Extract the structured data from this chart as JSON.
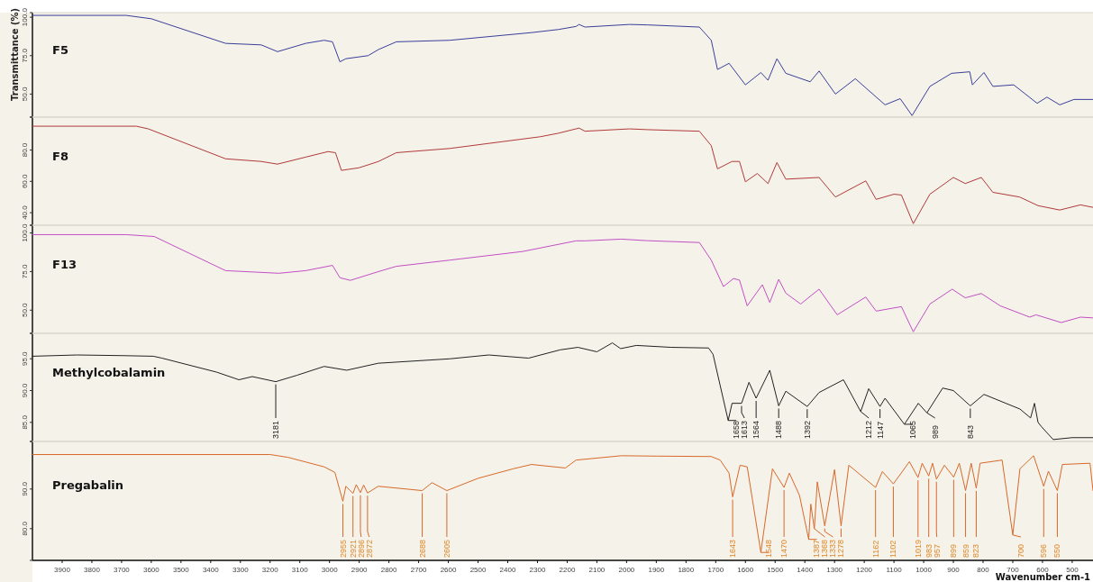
{
  "chart_data": [
    {
      "type": "line",
      "ylabel": "Transmittance (%)",
      "xlim": [
        4000,
        430
      ],
      "ylim": [
        35,
        103
      ],
      "tick_labels": "y",
      "yticks": [
        {
          "value": 100,
          "label": "100.0"
        },
        {
          "value": 75,
          "label": "75.0"
        },
        {
          "value": 50,
          "label": "50.0"
        }
      ],
      "series": [
        {
          "name": "F5",
          "color": "#3b3f9a",
          "x": [
            4000,
            3685,
            3600,
            3350,
            3230,
            3175,
            3080,
            3018,
            2990,
            2965,
            2945,
            2870,
            2835,
            2775,
            2595,
            2320,
            2230,
            2170,
            2160,
            2140,
            1990,
            1930,
            1755,
            1715,
            1694,
            1655,
            1600,
            1548,
            1524,
            1494,
            1464,
            1382,
            1352,
            1297,
            1230,
            1130,
            1079,
            1039,
            979,
            906,
            845,
            836,
            797,
            767,
            697,
            618,
            585,
            542,
            494,
            430
          ],
          "values": [
            101.2,
            101.2,
            99,
            83,
            82,
            77.6,
            83,
            85,
            84,
            71,
            73,
            75,
            79,
            84,
            85,
            90,
            92,
            94,
            95.3,
            93.6,
            95.3,
            95,
            93.6,
            85,
            66,
            70,
            56,
            64,
            59,
            73,
            63.5,
            58,
            65,
            50,
            60,
            43,
            47,
            36,
            55,
            63.5,
            64.5,
            56,
            64,
            55,
            56,
            44,
            48,
            43,
            46.5,
            46.5
          ]
        }
      ]
    },
    {
      "type": "line",
      "xlim": [
        4000,
        430
      ],
      "ylim": [
        32,
        101
      ],
      "tick_labels": "y",
      "yticks": [
        {
          "value": 80,
          "label": "80.0"
        },
        {
          "value": 60,
          "label": "60.0"
        },
        {
          "value": 40,
          "label": "40.0"
        }
      ],
      "series": [
        {
          "name": "F8",
          "color": "#b23a3a",
          "x": [
            4000,
            3650,
            3610,
            3350,
            3230,
            3175,
            3080,
            3005,
            2980,
            2960,
            2900,
            2835,
            2775,
            2595,
            2290,
            2230,
            2160,
            2140,
            1990,
            1930,
            1755,
            1715,
            1694,
            1645,
            1620,
            1600,
            1560,
            1524,
            1494,
            1464,
            1352,
            1297,
            1195,
            1160,
            1100,
            1075,
            1035,
            979,
            900,
            860,
            806,
            767,
            677,
            615,
            542,
            472,
            430
          ],
          "values": [
            95.2,
            95.2,
            93.5,
            74.4,
            72.7,
            71,
            75.5,
            79,
            78.3,
            67,
            68.7,
            72.7,
            78.3,
            81,
            88.5,
            90.7,
            94,
            92,
            93.5,
            93,
            92,
            82.8,
            68,
            72.7,
            72.7,
            59.7,
            65,
            58.6,
            72,
            61.4,
            62.5,
            50,
            60.3,
            48.5,
            51.8,
            51.3,
            33,
            51.8,
            62.5,
            58.6,
            62.5,
            53,
            50,
            44.5,
            41.7,
            45,
            43.4
          ]
        }
      ]
    },
    {
      "type": "line",
      "xlim": [
        4000,
        430
      ],
      "ylim": [
        35,
        105
      ],
      "tick_labels": "y",
      "yticks": [
        {
          "value": 100,
          "label": "100.0"
        },
        {
          "value": 75,
          "label": "75.0"
        },
        {
          "value": 50,
          "label": "50.0"
        }
      ],
      "series": [
        {
          "name": "F13",
          "color": "#c44fc4",
          "x": [
            4000,
            3685,
            3590,
            3350,
            3170,
            3080,
            2990,
            2965,
            2930,
            2835,
            2775,
            2595,
            2350,
            2170,
            2140,
            2018,
            1930,
            1755,
            1715,
            1674,
            1640,
            1620,
            1594,
            1543,
            1518,
            1488,
            1464,
            1414,
            1352,
            1291,
            1195,
            1160,
            1075,
            1035,
            979,
            904,
            860,
            806,
            742,
            643,
            622,
            537,
            472,
            430
          ],
          "values": [
            98.9,
            98.9,
            97.7,
            75.6,
            73.9,
            75.6,
            79,
            71,
            69.3,
            75,
            78.4,
            82.4,
            88,
            94.9,
            94.9,
            96,
            95,
            93.8,
            82.4,
            65.3,
            70.5,
            69.5,
            52.8,
            66.5,
            55,
            70,
            61,
            54,
            63.6,
            47,
            58.5,
            49.4,
            52.3,
            36,
            54,
            63.6,
            58,
            60.8,
            52.8,
            45.5,
            47,
            42,
            45.5,
            45
          ]
        }
      ]
    },
    {
      "type": "line",
      "xlim": [
        4000,
        430
      ],
      "ylim": [
        82,
        99
      ],
      "tick_labels": "y",
      "yticks": [
        {
          "value": 95,
          "label": "95.0"
        },
        {
          "value": 90,
          "label": "90.0"
        },
        {
          "value": 85,
          "label": "85.0"
        }
      ],
      "series": [
        {
          "name": "Methylcobalamin",
          "color": "#222222",
          "x": [
            4000,
            3850,
            3700,
            3593,
            3564,
            3380,
            3305,
            3260,
            3181,
            3110,
            3018,
            2942,
            2836,
            2594,
            2464,
            2330,
            2224,
            2164,
            2100,
            2048,
            2020,
            1967,
            1850,
            1724,
            1709,
            1658,
            1645,
            1613,
            1588,
            1564,
            1518,
            1488,
            1464,
            1392,
            1352,
            1270,
            1212,
            1185,
            1147,
            1130,
            1065,
            1018,
            989,
            936,
            900,
            843,
            797,
            676,
            640,
            627,
            615,
            603,
            564,
            500,
            430
          ],
          "values": [
            95.4,
            95.6,
            95.5,
            95.4,
            95.1,
            92.9,
            91.7,
            92.2,
            91.4,
            92.4,
            93.8,
            93.2,
            94.3,
            95,
            95.6,
            95.1,
            96.4,
            96.8,
            96.1,
            97.5,
            96.6,
            97.1,
            96.8,
            96.7,
            95.7,
            85.3,
            88,
            88,
            91.3,
            88.8,
            93.2,
            87.6,
            89.9,
            87.5,
            89.7,
            91.7,
            86.7,
            90.3,
            87.5,
            88.8,
            84.7,
            88,
            86.5,
            90.4,
            90,
            87.6,
            89.4,
            87.1,
            85.7,
            88,
            85,
            84.3,
            82.3,
            82.6,
            82.6
          ]
        }
      ],
      "annotations": [
        {
          "text": "3181",
          "x": 3181,
          "y": 91.4
        },
        {
          "text": "1658",
          "x": 1658,
          "y": 85.3
        },
        {
          "text": "1613",
          "x": 1613,
          "y": 88
        },
        {
          "text": "1564",
          "x": 1564,
          "y": 88.8
        },
        {
          "text": "1488",
          "x": 1488,
          "y": 87.6
        },
        {
          "text": "1392",
          "x": 1392,
          "y": 87.5
        },
        {
          "text": "1212",
          "x": 1212,
          "y": 86.7
        },
        {
          "text": "1147",
          "x": 1147,
          "y": 87.5
        },
        {
          "text": "1065",
          "x": 1065,
          "y": 84.7
        },
        {
          "text": "989",
          "x": 989,
          "y": 86.5
        },
        {
          "text": "843",
          "x": 843,
          "y": 87.6
        }
      ]
    },
    {
      "type": "line",
      "xlabel": "Wavenumber cm-1",
      "xlim": [
        4000,
        430
      ],
      "ylim": [
        72,
        102
      ],
      "xticks": [
        3900,
        3800,
        3700,
        3600,
        3500,
        3400,
        3300,
        3200,
        3100,
        3000,
        2900,
        2800,
        2700,
        2600,
        2500,
        2400,
        2300,
        2200,
        2100,
        2000,
        1900,
        1800,
        1700,
        1600,
        1500,
        1400,
        1300,
        1200,
        1100,
        1000,
        900,
        800,
        700,
        600,
        500
      ],
      "yticks": [
        {
          "value": 90,
          "label": "90.0"
        },
        {
          "value": 80,
          "label": "80.0"
        }
      ],
      "series": [
        {
          "name": "Pregabalin",
          "color": "#d9692a",
          "x": [
            4000,
            3200,
            3140,
            3018,
            2982,
            2955,
            2945,
            2921,
            2910,
            2896,
            2885,
            2872,
            2836,
            2688,
            2655,
            2605,
            2500,
            2382,
            2320,
            2206,
            2170,
            2018,
            1897,
            1715,
            1685,
            1655,
            1643,
            1618,
            1594,
            1548,
            1509,
            1470,
            1452,
            1418,
            1387,
            1380,
            1368,
            1358,
            1333,
            1300,
            1278,
            1252,
            1162,
            1139,
            1102,
            1048,
            1019,
            1005,
            983,
            970,
            957,
            930,
            899,
            880,
            859,
            840,
            823,
            810,
            736,
            700,
            676,
            630,
            596,
            580,
            550,
            533,
            440,
            430
          ],
          "values": [
            98.7,
            98.7,
            98,
            95.6,
            94.2,
            86.9,
            90.7,
            88.9,
            91.1,
            89.1,
            91,
            89,
            90.7,
            89.6,
            91.6,
            89.6,
            92.7,
            95.1,
            96.2,
            95.3,
            97.3,
            98.4,
            98.3,
            98.2,
            97.3,
            94,
            88,
            96,
            95.6,
            74,
            95.1,
            90.4,
            94,
            88.4,
            77.3,
            86.2,
            80,
            91.8,
            80.7,
            94.9,
            80.7,
            96,
            90.4,
            94.4,
            91.3,
            96.9,
            92.9,
            96.5,
            93.3,
            96.5,
            92.5,
            96,
            93,
            96.5,
            89.6,
            96.5,
            90.2,
            96.5,
            97.3,
            78.4,
            95.1,
            98.4,
            90.7,
            94.5,
            89.6,
            96.2,
            96.5,
            89.6
          ]
        }
      ],
      "annotations": [
        {
          "text": "2955",
          "x": 2955,
          "y": 86.9
        },
        {
          "text": "2921",
          "x": 2921,
          "y": 88.9
        },
        {
          "text": "2896",
          "x": 2896,
          "y": 89.1
        },
        {
          "text": "2872",
          "x": 2872,
          "y": 89
        },
        {
          "text": "2688",
          "x": 2688,
          "y": 89.6
        },
        {
          "text": "2605",
          "x": 2605,
          "y": 89.6
        },
        {
          "text": "1643",
          "x": 1643,
          "y": 88
        },
        {
          "text": "1548",
          "x": 1548,
          "y": 74
        },
        {
          "text": "1470",
          "x": 1470,
          "y": 90.4
        },
        {
          "text": "1387",
          "x": 1387,
          "y": 77.3
        },
        {
          "text": "1368",
          "x": 1368,
          "y": 80
        },
        {
          "text": "1333",
          "x": 1333,
          "y": 80.7
        },
        {
          "text": "1278",
          "x": 1278,
          "y": 80.7
        },
        {
          "text": "1162",
          "x": 1162,
          "y": 90.4
        },
        {
          "text": "1102",
          "x": 1102,
          "y": 91.3
        },
        {
          "text": "1019",
          "x": 1019,
          "y": 92.9
        },
        {
          "text": "983",
          "x": 983,
          "y": 93.3
        },
        {
          "text": "957",
          "x": 957,
          "y": 92.5
        },
        {
          "text": "899",
          "x": 899,
          "y": 93
        },
        {
          "text": "859",
          "x": 859,
          "y": 89.6
        },
        {
          "text": "823",
          "x": 823,
          "y": 90.2
        },
        {
          "text": "700",
          "x": 700,
          "y": 78.4
        },
        {
          "text": "596",
          "x": 596,
          "y": 90.7
        },
        {
          "text": "550",
          "x": 550,
          "y": 89.6
        }
      ]
    }
  ]
}
